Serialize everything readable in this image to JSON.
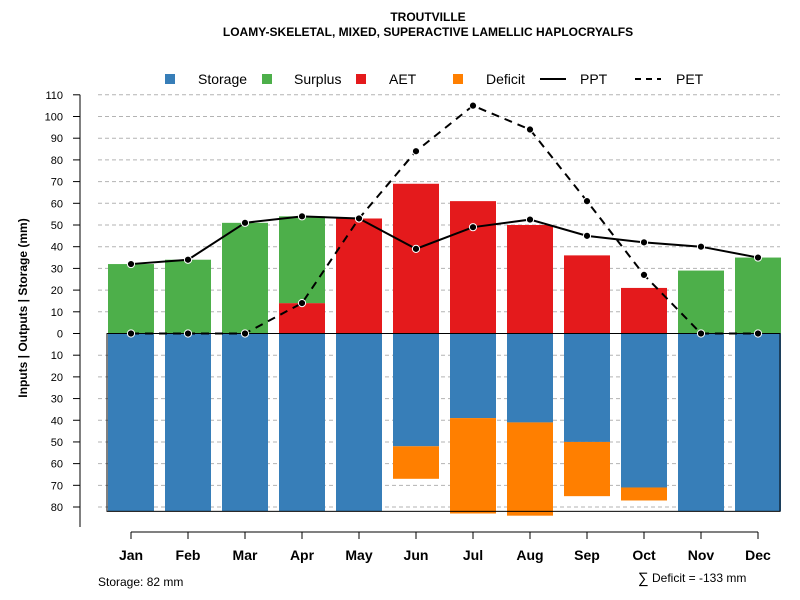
{
  "chart_data": {
    "type": "bar",
    "title": "TROUTVILLE",
    "subtitle": "LOAMY-SKELETAL, MIXED, SUPERACTIVE LAMELLIC HAPLOCRYALFS",
    "ylabel": "Inputs | Outputs | Storage    (mm)",
    "xlabel": "",
    "categories": [
      "Jan",
      "Feb",
      "Mar",
      "Apr",
      "May",
      "Jun",
      "Jul",
      "Aug",
      "Sep",
      "Oct",
      "Nov",
      "Dec"
    ],
    "ylim_upper": [
      0,
      110
    ],
    "ylim_lower": [
      0,
      85
    ],
    "yticks_upper": [
      0,
      10,
      20,
      30,
      40,
      50,
      60,
      70,
      80,
      90,
      100,
      110
    ],
    "yticks_lower": [
      10,
      20,
      30,
      40,
      50,
      60,
      70,
      80
    ],
    "grid": true,
    "legend_position": "top",
    "legend": [
      {
        "label": "Storage",
        "kind": "square",
        "color": "#377EB8"
      },
      {
        "label": "Surplus",
        "kind": "square",
        "color": "#4DAF4A"
      },
      {
        "label": "AET",
        "kind": "square",
        "color": "#E41A1C"
      },
      {
        "label": "Deficit",
        "kind": "square",
        "color": "#FF7F00"
      },
      {
        "label": "PPT",
        "kind": "solid-line",
        "color": "#000000"
      },
      {
        "label": "PET",
        "kind": "dashed-line",
        "color": "#000000"
      }
    ],
    "series": [
      {
        "name": "Surplus",
        "color": "#4DAF4A",
        "values": [
          32,
          34,
          51,
          40,
          0,
          0,
          0,
          0,
          0,
          0,
          29,
          35
        ]
      },
      {
        "name": "AET",
        "color": "#E41A1C",
        "values": [
          0,
          0,
          0,
          14,
          53,
          69,
          61,
          50,
          36,
          21,
          0,
          0
        ]
      },
      {
        "name": "Storage",
        "color": "#377EB8",
        "values": [
          82,
          82,
          82,
          82,
          82,
          52,
          39,
          41,
          50,
          71,
          82,
          82
        ]
      },
      {
        "name": "Deficit",
        "color": "#FF7F00",
        "values": [
          0,
          0,
          0,
          0,
          0,
          15,
          44,
          43,
          25,
          6,
          0,
          0
        ]
      },
      {
        "name": "PPT",
        "color": "#000000",
        "values": [
          32,
          34,
          51,
          54,
          53,
          39,
          49,
          52.5,
          45,
          42,
          40,
          35
        ]
      },
      {
        "name": "PET",
        "color": "#000000",
        "values": [
          0,
          0,
          0,
          14,
          53,
          84,
          105,
          94,
          61,
          27,
          0,
          0
        ]
      }
    ],
    "footer_left": "Storage: 82 mm",
    "footer_right_symbol": "∑",
    "footer_right": "Deficit = -133 mm"
  }
}
